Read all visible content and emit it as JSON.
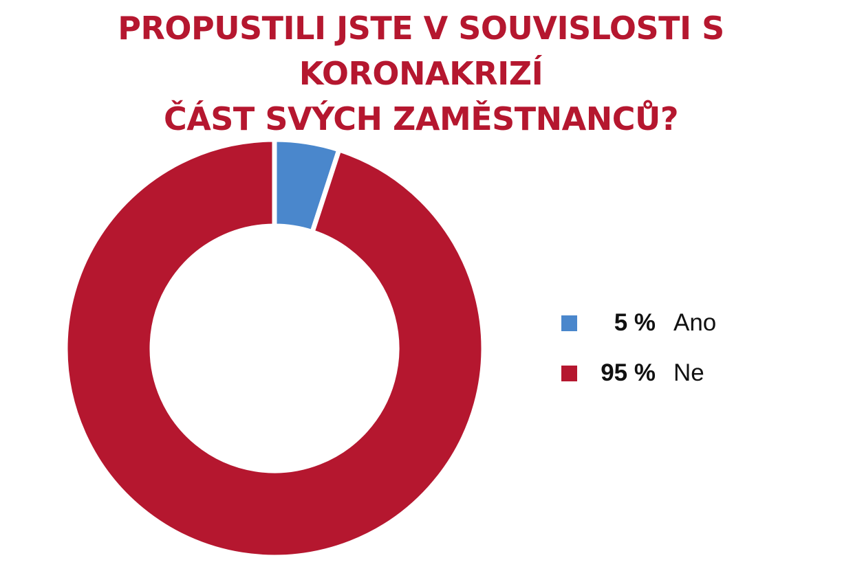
{
  "title": {
    "line1": "PROPUSTILI JSTE V SOUVISLOSTI S KORONAKRIZÍ",
    "line2": "ČÁST SVÝCH ZAMĚSTNANCŮ?"
  },
  "chart_data": {
    "type": "pie",
    "variant": "donut",
    "title": "PROPUSTILI JSTE V SOUVISLOSTI S KORONAKRIZÍ ČÁST SVÝCH ZAMĚSTNANCŮ?",
    "slices": [
      {
        "label": "Ano",
        "value": 5,
        "display": "5 %",
        "color": "#4a87cc"
      },
      {
        "label": "Ne",
        "value": 95,
        "display": "95 %",
        "color": "#b5172f"
      }
    ],
    "legend_position": "right",
    "unit": "%"
  },
  "legend": {
    "items": [
      {
        "pct": "5 %",
        "label": "Ano",
        "color": "#4a87cc"
      },
      {
        "pct": "95 %",
        "label": "Ne",
        "color": "#b5172f"
      }
    ]
  }
}
